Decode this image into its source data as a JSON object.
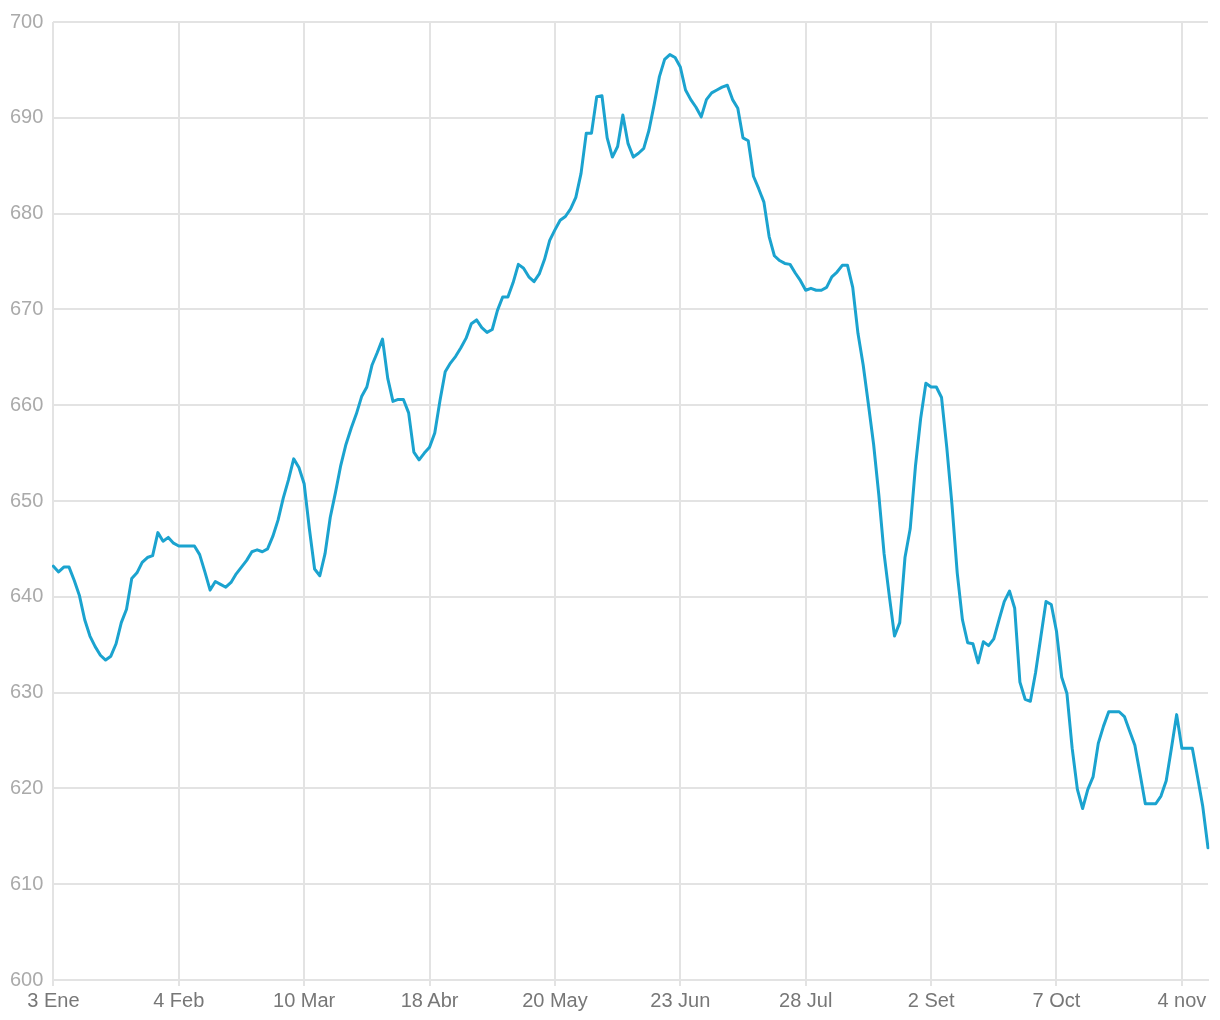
{
  "chart_data": {
    "type": "line",
    "color": "#1ba3cf",
    "categories": [
      "3 Ene",
      null,
      null,
      null,
      null,
      null,
      null,
      null,
      null,
      null,
      null,
      null,
      null,
      null,
      null,
      null,
      null,
      null,
      null,
      null,
      null,
      null,
      null,
      null,
      "4 Feb",
      null,
      null,
      null,
      null,
      null,
      null,
      null,
      null,
      null,
      null,
      null,
      null,
      null,
      null,
      null,
      null,
      null,
      null,
      null,
      null,
      null,
      null,
      null,
      "10 Mar",
      null,
      null,
      null,
      null,
      null,
      null,
      null,
      null,
      null,
      null,
      null,
      null,
      null,
      null,
      null,
      null,
      null,
      null,
      null,
      null,
      null,
      null,
      null,
      "18 Abr",
      null,
      null,
      null,
      null,
      null,
      null,
      null,
      null,
      null,
      null,
      null,
      null,
      null,
      null,
      null,
      null,
      null,
      null,
      null,
      null,
      null,
      null,
      null,
      "20 May",
      null,
      null,
      null,
      null,
      null,
      null,
      null,
      null,
      null,
      null,
      null,
      null,
      null,
      null,
      null,
      null,
      null,
      null,
      null,
      null,
      null,
      null,
      null,
      "23 Jun",
      null,
      null,
      null,
      null,
      null,
      null,
      null,
      null,
      null,
      null,
      null,
      null,
      null,
      null,
      null,
      null,
      null,
      null,
      null,
      null,
      null,
      null,
      null,
      "28 Jul",
      null,
      null,
      null,
      null,
      null,
      null,
      null,
      null,
      null,
      null,
      null,
      null,
      null,
      null,
      null,
      null,
      null,
      null,
      null,
      null,
      null,
      null,
      null,
      "2 Set",
      null,
      null,
      null,
      null,
      null,
      null,
      null,
      null,
      null,
      null,
      null,
      null,
      null,
      null,
      null,
      null,
      null,
      null,
      null,
      null,
      null,
      null,
      null,
      "7 Oct",
      null,
      null,
      null,
      null,
      null,
      null,
      null,
      null,
      null,
      null,
      null,
      null,
      null,
      null,
      null,
      null,
      null,
      null,
      null,
      null,
      null,
      null,
      null,
      "4 nov",
      null,
      null,
      null,
      null,
      null
    ],
    "values": [
      643.2,
      642.6,
      643.1,
      643.1,
      641.7,
      640.1,
      637.6,
      635.9,
      634.8,
      633.9,
      633.4,
      633.8,
      635.1,
      637.3,
      638.7,
      641.9,
      642.5,
      643.6,
      644.1,
      644.3,
      646.7,
      645.8,
      646.2,
      645.6,
      645.3,
      645.3,
      645.3,
      645.3,
      644.4,
      642.6,
      640.7,
      641.6,
      641.3,
      641.0,
      641.5,
      642.4,
      643.1,
      643.8,
      644.7,
      644.9,
      644.7,
      645.0,
      646.3,
      648.0,
      650.3,
      652.2,
      654.4,
      653.5,
      651.8,
      647.1,
      642.9,
      642.2,
      644.5,
      648.3,
      650.9,
      653.7,
      655.9,
      657.6,
      659.1,
      660.9,
      661.9,
      664.2,
      665.5,
      666.9,
      662.8,
      660.4,
      660.6,
      660.6,
      659.2,
      655.1,
      654.3,
      655.0,
      655.6,
      657.1,
      660.5,
      663.5,
      664.4,
      665.1,
      666.0,
      667.0,
      668.5,
      668.9,
      668.1,
      667.6,
      667.9,
      669.9,
      671.3,
      671.3,
      672.8,
      674.7,
      674.3,
      673.4,
      672.9,
      673.7,
      675.2,
      677.2,
      678.3,
      679.3,
      679.7,
      680.5,
      681.7,
      684.2,
      688.4,
      688.4,
      692.2,
      692.3,
      687.9,
      685.9,
      687.0,
      690.3,
      687.3,
      685.9,
      686.3,
      686.8,
      688.7,
      691.4,
      694.3,
      696.1,
      696.6,
      696.3,
      695.3,
      692.9,
      691.9,
      691.1,
      690.1,
      691.9,
      692.6,
      692.9,
      693.2,
      693.4,
      691.9,
      691.0,
      687.9,
      687.6,
      683.9,
      682.6,
      681.2,
      677.6,
      675.6,
      675.1,
      674.8,
      674.7,
      673.8,
      673.0,
      672.0,
      672.2,
      672.0,
      672.0,
      672.3,
      673.4,
      673.9,
      674.6,
      674.6,
      672.3,
      667.5,
      664.2,
      660.1,
      655.9,
      650.6,
      644.5,
      640.1,
      635.9,
      637.3,
      644.1,
      647.1,
      653.6,
      658.6,
      662.3,
      661.9,
      661.9,
      660.8,
      655.6,
      649.6,
      642.5,
      637.6,
      635.2,
      635.1,
      633.1,
      635.3,
      634.9,
      635.6,
      637.6,
      639.5,
      640.6,
      638.8,
      631.1,
      629.3,
      629.1,
      632.1,
      635.8,
      639.5,
      639.2,
      636.4,
      631.6,
      629.9,
      624.2,
      619.9,
      617.9,
      619.9,
      621.2,
      624.7,
      626.5,
      628.0,
      628.0,
      628.0,
      627.5,
      626.0,
      624.5,
      621.5,
      618.4,
      618.4,
      618.4,
      619.2,
      620.8,
      624.2,
      627.7,
      624.2,
      624.2,
      624.2,
      621.2,
      618.1,
      613.8
    ],
    "ylim": [
      600,
      700
    ],
    "yticks": [
      600,
      610,
      620,
      630,
      640,
      650,
      660,
      670,
      680,
      690,
      700
    ],
    "grid": true
  }
}
